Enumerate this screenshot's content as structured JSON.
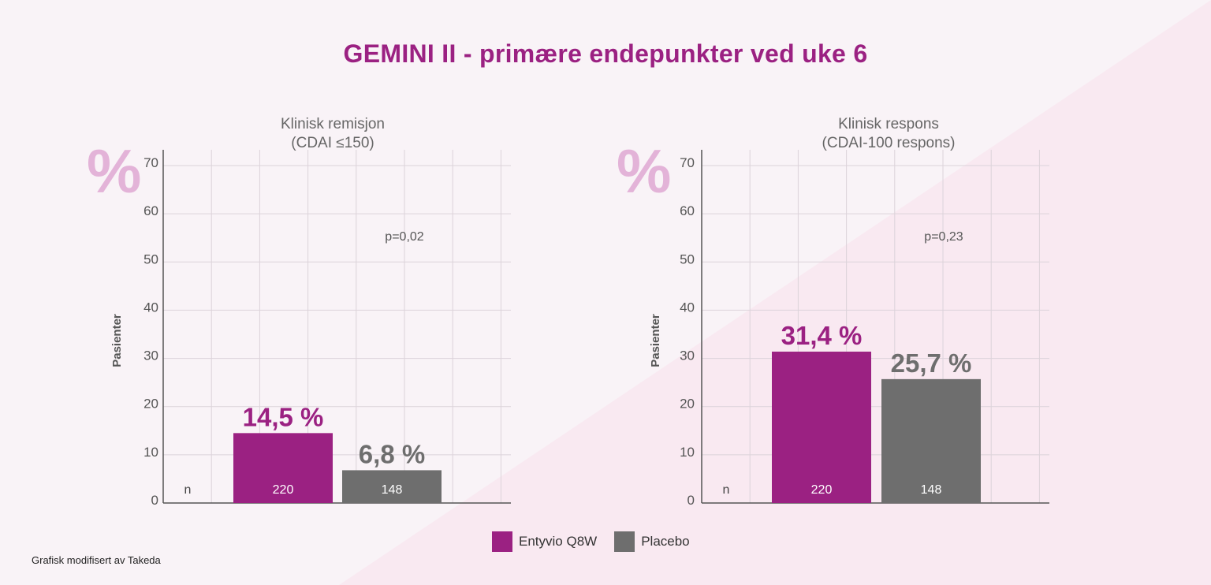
{
  "title": "GEMINI II - primære endepunkter ved uke 6",
  "colors": {
    "entyvio": "#9b2182",
    "placebo": "#6e6e6e",
    "grid": "#dcd3da",
    "axis": "#555555",
    "percent_sign": "#e3b3d8",
    "background": "#f9f3f7",
    "background_accent": "#f9e9f1"
  },
  "percent_symbol": "%",
  "legend": [
    {
      "label": "Entyvio Q8W",
      "color": "#9b2182"
    },
    {
      "label": "Placebo",
      "color": "#6e6e6e"
    }
  ],
  "footnote": "Grafisk modifisert av Takeda",
  "chart_data": [
    {
      "type": "bar",
      "title_line1": "Klinisk remisjon",
      "title_line2": "(CDAI ≤150)",
      "ylabel": "Pasienter",
      "ylim": [
        0,
        70
      ],
      "yticks": [
        "0",
        "10",
        "20",
        "30",
        "40",
        "50",
        "60",
        "70"
      ],
      "n_label": "n",
      "p_value": "p=0,02",
      "categories": [
        "Entyvio Q8W",
        "Placebo"
      ],
      "values": [
        14.5,
        6.8
      ],
      "value_labels": [
        "14,5 %",
        "6,8 %"
      ],
      "n_values": [
        "220",
        "148"
      ]
    },
    {
      "type": "bar",
      "title_line1": "Klinisk respons",
      "title_line2": "(CDAI-100 respons)",
      "ylabel": "Pasienter",
      "ylim": [
        0,
        70
      ],
      "yticks": [
        "0",
        "10",
        "20",
        "30",
        "40",
        "50",
        "60",
        "70"
      ],
      "n_label": "n",
      "p_value": "p=0,23",
      "categories": [
        "Entyvio Q8W",
        "Placebo"
      ],
      "values": [
        31.4,
        25.7
      ],
      "value_labels": [
        "31,4 %",
        "25,7 %"
      ],
      "n_values": [
        "220",
        "148"
      ]
    }
  ]
}
